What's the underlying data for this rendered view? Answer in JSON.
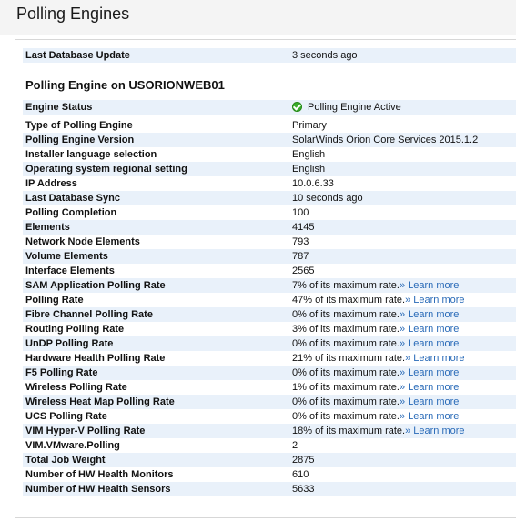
{
  "page_title": "Polling Engines",
  "last_update": {
    "label": "Last Database Update",
    "value": "3 seconds ago"
  },
  "engine_title": "Polling Engine on USORIONWEB01",
  "status": {
    "label": "Engine Status",
    "value": "Polling Engine Active",
    "icon": "check-circle-icon",
    "color": "#3aae2a"
  },
  "rows": [
    {
      "label": "Type of Polling Engine",
      "value": "Primary"
    },
    {
      "label": "Polling Engine Version",
      "value": "SolarWinds Orion Core Services 2015.1.2"
    },
    {
      "label": "Installer language selection",
      "value": "English"
    },
    {
      "label": "Operating system regional setting",
      "value": "English"
    },
    {
      "label": "IP Address",
      "value": "10.0.6.33"
    },
    {
      "label": "Last Database Sync",
      "value": "10 seconds ago"
    },
    {
      "label": "Polling Completion",
      "value": "100"
    },
    {
      "label": "Elements",
      "value": "4145"
    },
    {
      "label": "Network Node Elements",
      "value": "793"
    },
    {
      "label": "Volume Elements",
      "value": "787"
    },
    {
      "label": "Interface Elements",
      "value": "2565"
    },
    {
      "label": "SAM Application Polling Rate",
      "value": "7% of its maximum rate.",
      "link": "» Learn more"
    },
    {
      "label": "Polling Rate",
      "value": "47% of its maximum rate.",
      "link": "» Learn more"
    },
    {
      "label": "Fibre Channel Polling Rate",
      "value": "0% of its maximum rate.",
      "link": "» Learn more"
    },
    {
      "label": "Routing Polling Rate",
      "value": "3% of its maximum rate.",
      "link": "» Learn more"
    },
    {
      "label": "UnDP Polling Rate",
      "value": "0% of its maximum rate.",
      "link": "» Learn more"
    },
    {
      "label": "Hardware Health Polling Rate",
      "value": "21% of its maximum rate.",
      "link": "» Learn more"
    },
    {
      "label": "F5 Polling Rate",
      "value": "0% of its maximum rate.",
      "link": "» Learn more"
    },
    {
      "label": "Wireless Polling Rate",
      "value": "1% of its maximum rate.",
      "link": "» Learn more"
    },
    {
      "label": "Wireless Heat Map Polling Rate",
      "value": "0% of its maximum rate.",
      "link": "» Learn more"
    },
    {
      "label": "UCS Polling Rate",
      "value": "0% of its maximum rate.",
      "link": "» Learn more"
    },
    {
      "label": "VIM Hyper-V Polling Rate",
      "value": "18% of its maximum rate.",
      "link": "» Learn more"
    },
    {
      "label": "VIM.VMware.Polling",
      "value": "2"
    },
    {
      "label": "Total Job Weight",
      "value": "2875"
    },
    {
      "label": "Number of HW Health Monitors",
      "value": "610"
    },
    {
      "label": "Number of HW Health Sensors",
      "value": "5633"
    }
  ]
}
